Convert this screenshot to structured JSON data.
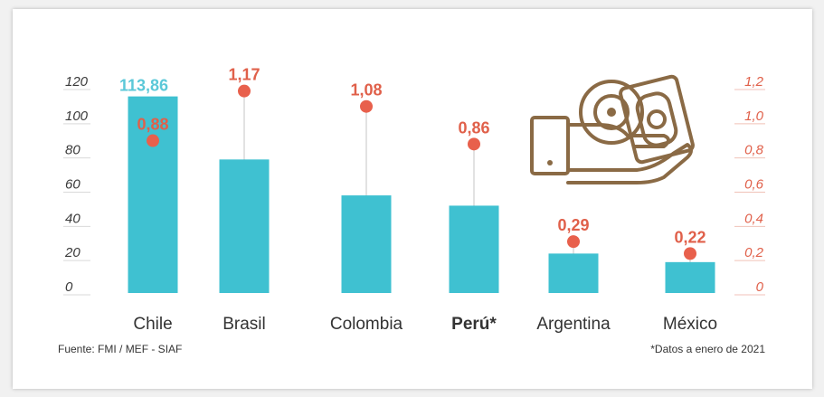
{
  "chart_data": {
    "type": "bar",
    "categories": [
      "Chile",
      "Brasil",
      "Colombia",
      "Perú*",
      "Argentina",
      "México"
    ],
    "bold_categories": [
      "Perú*"
    ],
    "series": [
      {
        "values": [
          113.86,
          77,
          56,
          50,
          22,
          17
        ],
        "axis": "left",
        "mark": "bar",
        "color": "#3fc1d1"
      },
      {
        "values": [
          0.88,
          1.17,
          1.08,
          0.86,
          0.29,
          0.22
        ],
        "axis": "right",
        "mark": "dot",
        "color": "#e8604c"
      }
    ],
    "bar_data_labels": [
      {
        "index": 0,
        "text": "113,86"
      }
    ],
    "dot_data_labels": [
      "0,88",
      "1,17",
      "1,08",
      "0,86",
      "0,29",
      "0,22"
    ],
    "left_axis": {
      "ylim": [
        0,
        120
      ],
      "ticks": [
        "0",
        "20",
        "40",
        "60",
        "80",
        "100",
        "120"
      ]
    },
    "right_axis": {
      "ylim": [
        0,
        1.2
      ],
      "ticks": [
        "0",
        "0,2",
        "0,4",
        "0,6",
        "0,8",
        "1,0",
        "1,2"
      ]
    },
    "title": "",
    "xlabel": "",
    "ylabel": "",
    "grid": true,
    "legend": "none"
  },
  "footer": {
    "source": "Fuente: FMI / MEF - SIAF",
    "note": "*Datos a enero de 2021"
  },
  "icon": "hand-holding-money-icon"
}
